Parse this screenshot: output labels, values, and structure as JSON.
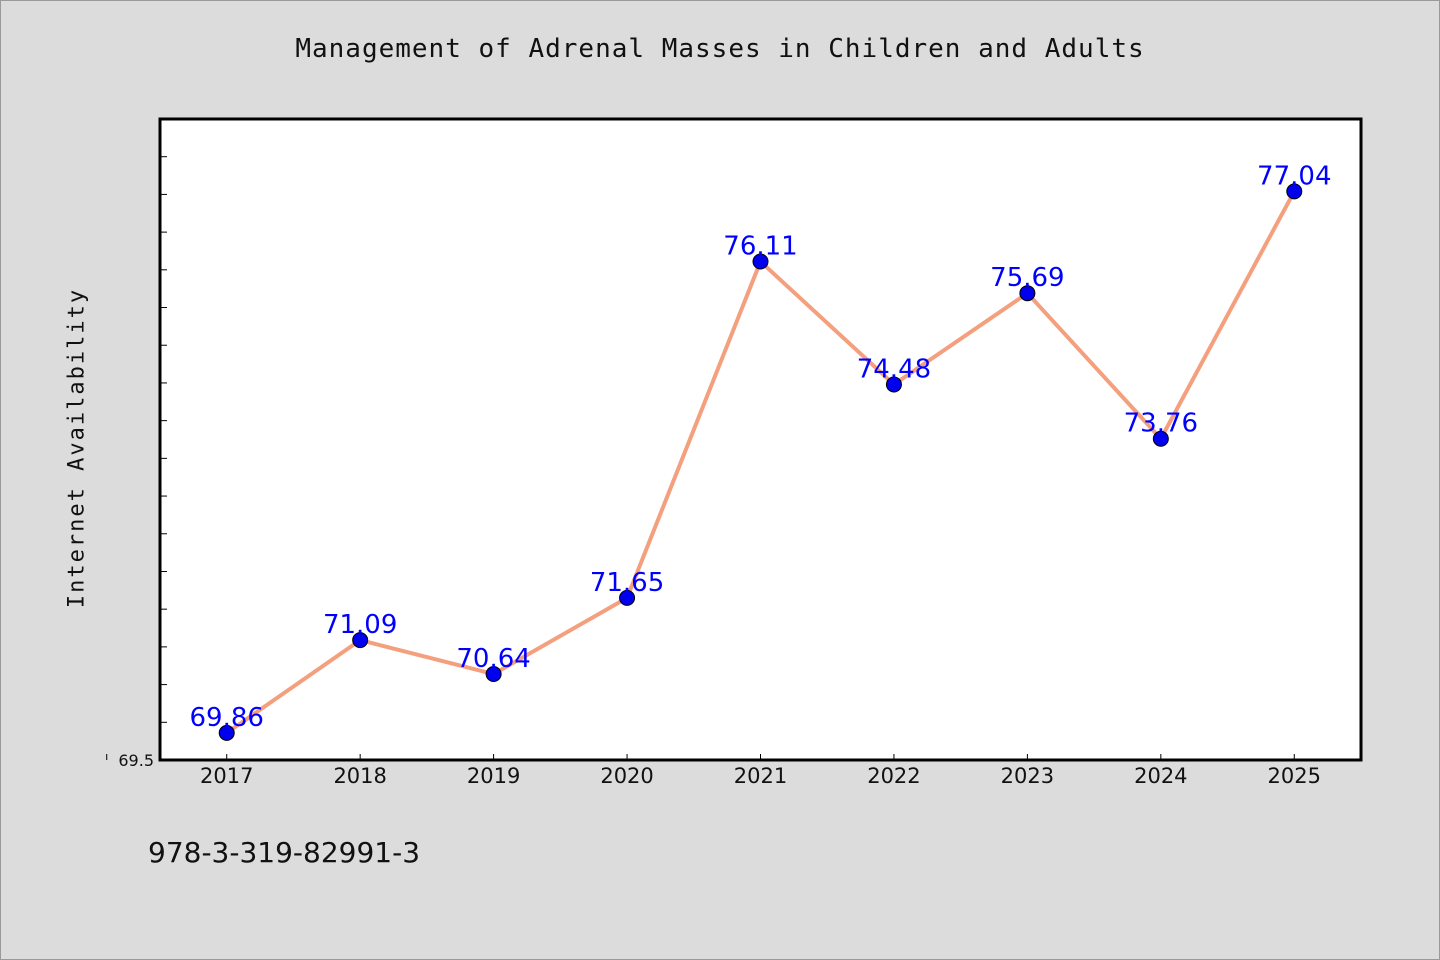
{
  "chart_data": {
    "type": "line",
    "title": "Management of Adrenal Masses in Children and Adults",
    "xlabel": "",
    "ylabel": "Internet Availability",
    "categories": [
      "2017",
      "2018",
      "2019",
      "2020",
      "2021",
      "2022",
      "2023",
      "2024",
      "2025"
    ],
    "series": [
      {
        "values": [
          69.86,
          71.09,
          70.64,
          71.65,
          76.11,
          74.48,
          75.69,
          73.76,
          77.04
        ]
      }
    ],
    "data_labels": [
      "69.86",
      "71.09",
      "70.64",
      "71.65",
      "76.11",
      "74.48",
      "75.69",
      "73.76",
      "77.04"
    ],
    "ytick_labels": [
      "69.5"
    ],
    "ylim": [
      69.5,
      78.0
    ],
    "xlim": [
      2016.5,
      2025.5
    ],
    "grid": false,
    "legend": "none",
    "colors": {
      "line": "#f4a07e",
      "marker": "#0000ee",
      "label": "#0000ff",
      "background": "#dcdcdc",
      "plot_background": "#ffffff"
    }
  },
  "footer_text": "978-3-319-82991-3"
}
